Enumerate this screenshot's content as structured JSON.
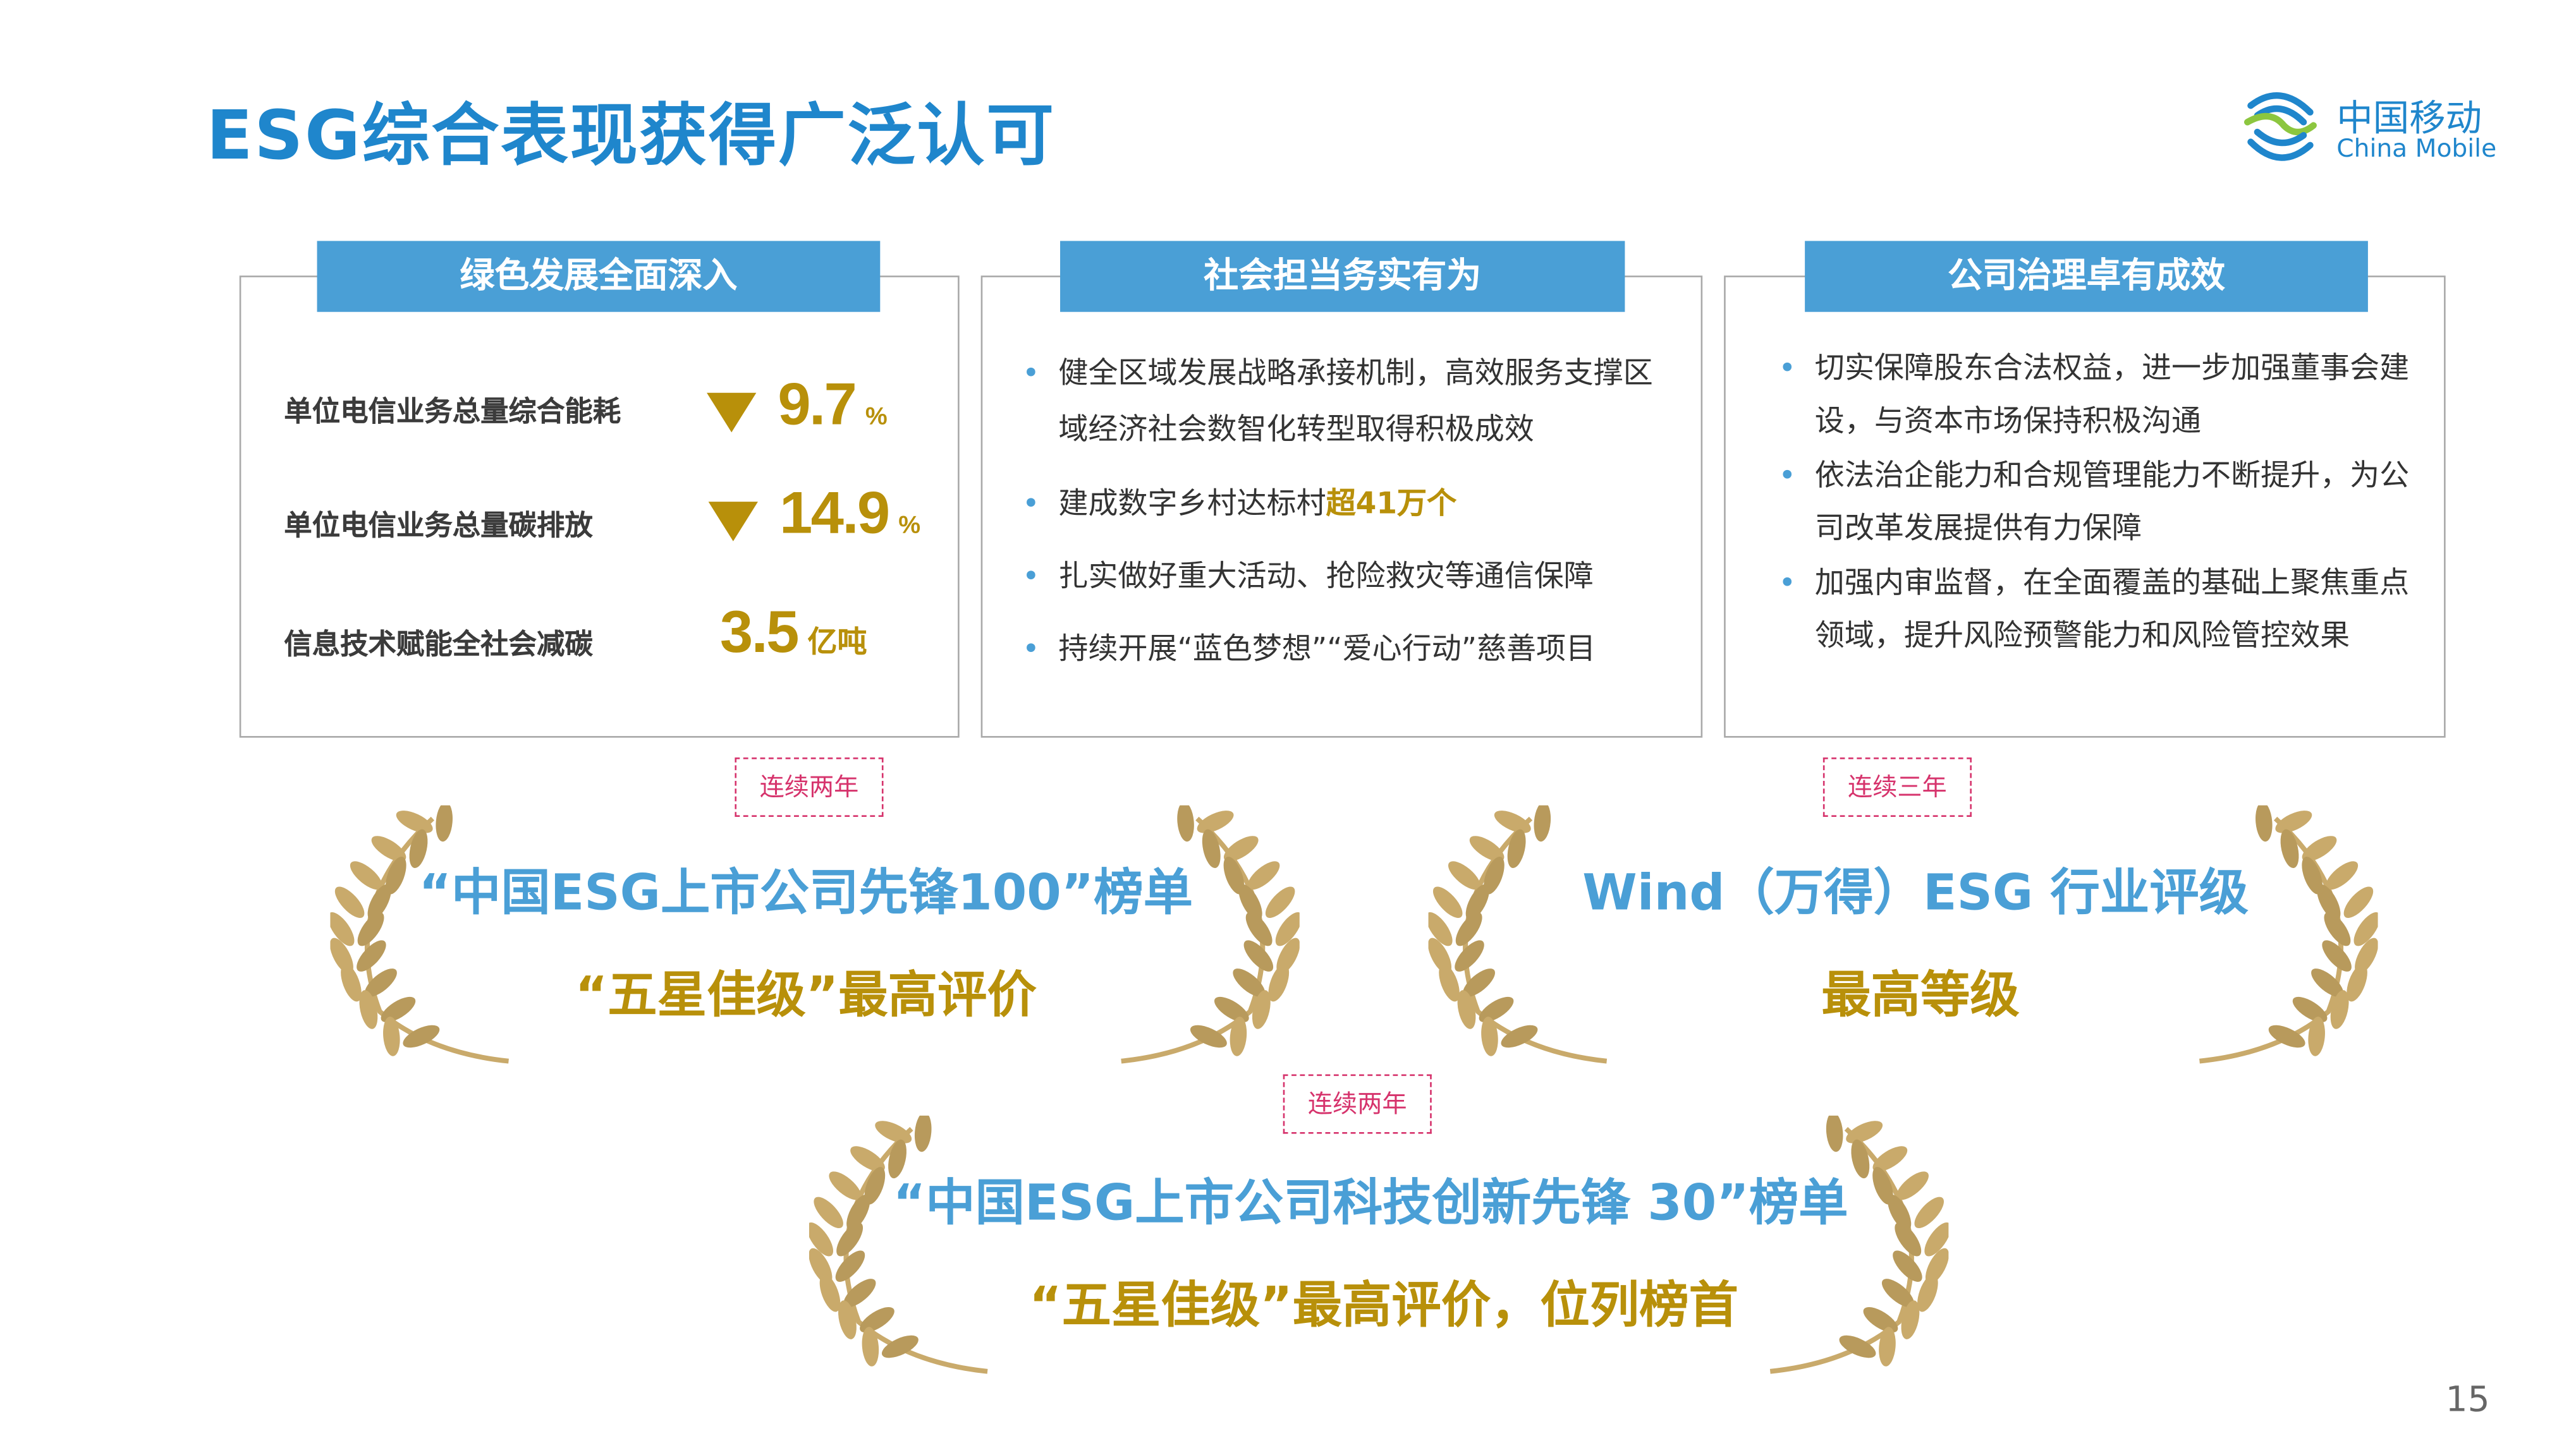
{
  "title": "ESG综合表现获得广泛认可",
  "logo": {
    "cn": "中国移动",
    "en": "China Mobile",
    "colors": {
      "blue": "#1f86cc",
      "green": "#8cc63f"
    }
  },
  "colors": {
    "accent_blue": "#4a9fd6",
    "gold": "#b8900a",
    "tag_pink": "#d6336c"
  },
  "panels": [
    {
      "header": "绿色发展全面深入",
      "metrics": [
        {
          "label": "单位电信业务总量综合能耗",
          "trend": "down",
          "value": "9.7",
          "unit": "%"
        },
        {
          "label": "单位电信业务总量碳排放",
          "trend": "down",
          "value": "14.9",
          "unit": "%"
        },
        {
          "label": "信息技术赋能全社会减碳",
          "trend": "",
          "value": "3.5",
          "unit": "亿吨"
        }
      ]
    },
    {
      "header": "社会担当务实有为",
      "bullets": [
        {
          "text": "健全区域发展战略承接机制，高效服务支撑区域经济社会数智化转型取得积极成效"
        },
        {
          "text": "建成数字乡村达标村",
          "highlight": "超41万个"
        },
        {
          "text": "扎实做好重大活动、抢险救灾等通信保障"
        },
        {
          "text": "持续开展“蓝色梦想”“爱心行动”慈善项目"
        }
      ]
    },
    {
      "header": "公司治理卓有成效",
      "bullets": [
        {
          "text": "切实保障股东合法权益，进一步加强董事会建设，与资本市场保持积极沟通"
        },
        {
          "text": "依法治企能力和合规管理能力不断提升，为公司改革发展提供有力保障"
        },
        {
          "text": "加强内审监督，在全面覆盖的基础上聚焦重点领域，提升风险预警能力和风险管控效果"
        }
      ]
    }
  ],
  "awards": [
    {
      "tag": "连续两年",
      "line1": "“中国ESG上市公司先锋100”榜单",
      "line2": "“五星佳级”最高评价"
    },
    {
      "tag": "连续三年",
      "line1": "Wind（万得）ESG 行业评级",
      "line2": "最高等级"
    },
    {
      "tag": "连续两年",
      "line1": "“中国ESG上市公司科技创新先锋 30”榜单",
      "line2": "“五星佳级”最高评价，位列榜首"
    }
  ],
  "page_number": "15"
}
